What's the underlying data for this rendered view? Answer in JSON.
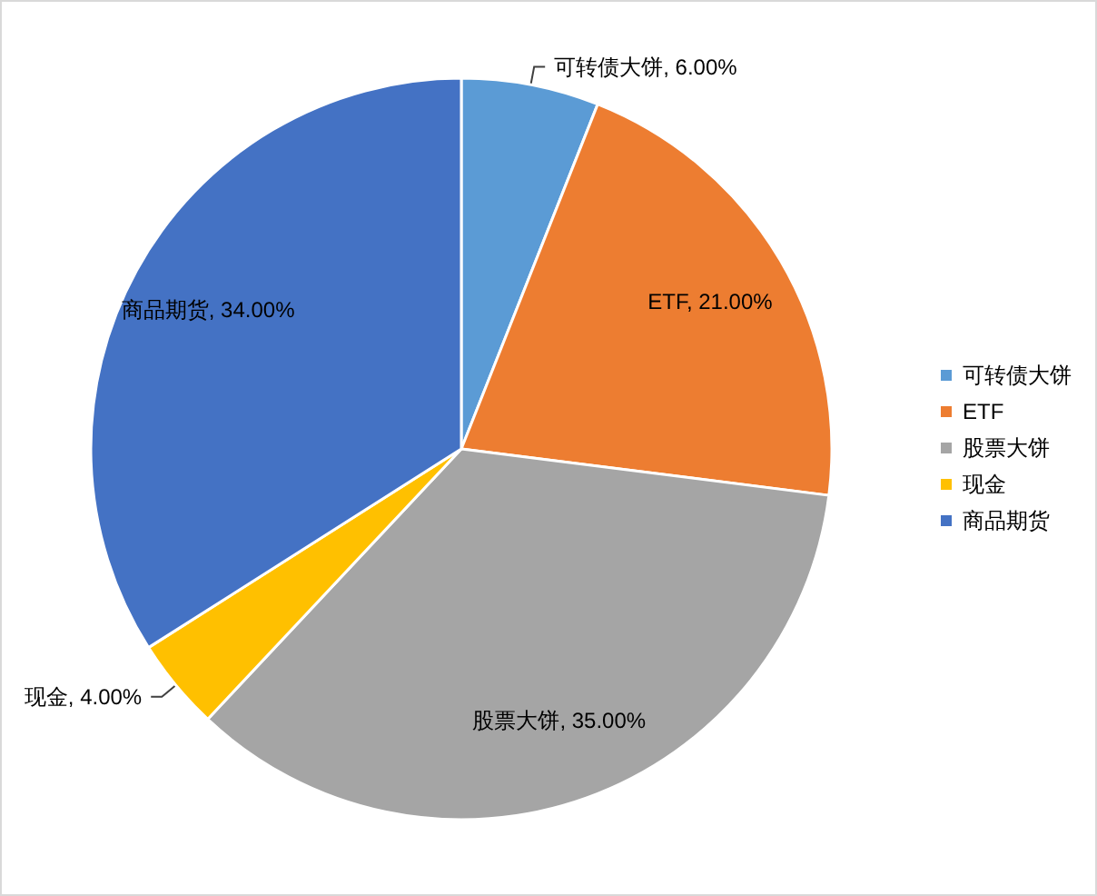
{
  "chart_data": {
    "type": "pie",
    "categories": [
      "可转债大饼",
      "ETF",
      "股票大饼",
      "现金",
      "商品期货"
    ],
    "values": [
      6,
      21,
      35,
      4,
      34
    ],
    "colors": [
      "#5b9bd5",
      "#ed7d31",
      "#a5a5a5",
      "#ffc000",
      "#4472c4"
    ],
    "value_labels": [
      "可转债大饼, 6.00%",
      "ETF, 21.00%",
      "股票大饼, 35.00%",
      "现金, 4.00%",
      "商品期货, 34.00%"
    ],
    "legend": "right"
  }
}
